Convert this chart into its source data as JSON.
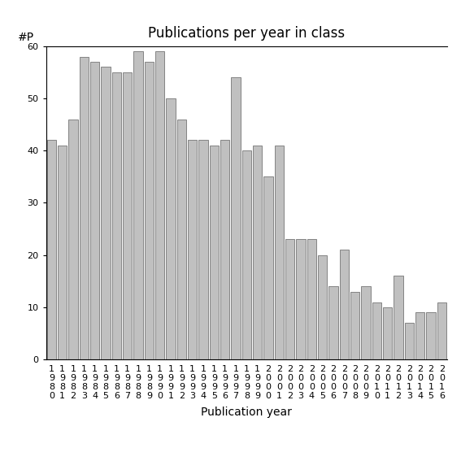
{
  "title": "Publications per year in class",
  "xlabel": "Publication year",
  "ylabel": "#P",
  "years": [
    "1980",
    "1981",
    "1982",
    "1983",
    "1984",
    "1985",
    "1986",
    "1987",
    "1988",
    "1989",
    "1990",
    "1991",
    "1992",
    "1993",
    "1994",
    "1995",
    "1996",
    "1997",
    "1998",
    "1999",
    "2000",
    "2001",
    "2002",
    "2003",
    "2004",
    "2005",
    "2006",
    "2007",
    "2008",
    "2009",
    "2010",
    "2011",
    "2012",
    "2013",
    "2014",
    "2015",
    "2016"
  ],
  "values": [
    42,
    41,
    46,
    58,
    57,
    56,
    55,
    55,
    59,
    57,
    59,
    50,
    46,
    42,
    42,
    41,
    42,
    54,
    40,
    41,
    35,
    41,
    23,
    23,
    23,
    20,
    14,
    21,
    13,
    14,
    11,
    10,
    16,
    7,
    9,
    9,
    11
  ],
  "bar_color": "#c0c0c0",
  "bar_edgecolor": "#606060",
  "ylim": [
    0,
    60
  ],
  "yticks": [
    0,
    10,
    20,
    30,
    40,
    50,
    60
  ],
  "background_color": "#ffffff",
  "title_fontsize": 12,
  "axis_fontsize": 10,
  "tick_fontsize": 8
}
